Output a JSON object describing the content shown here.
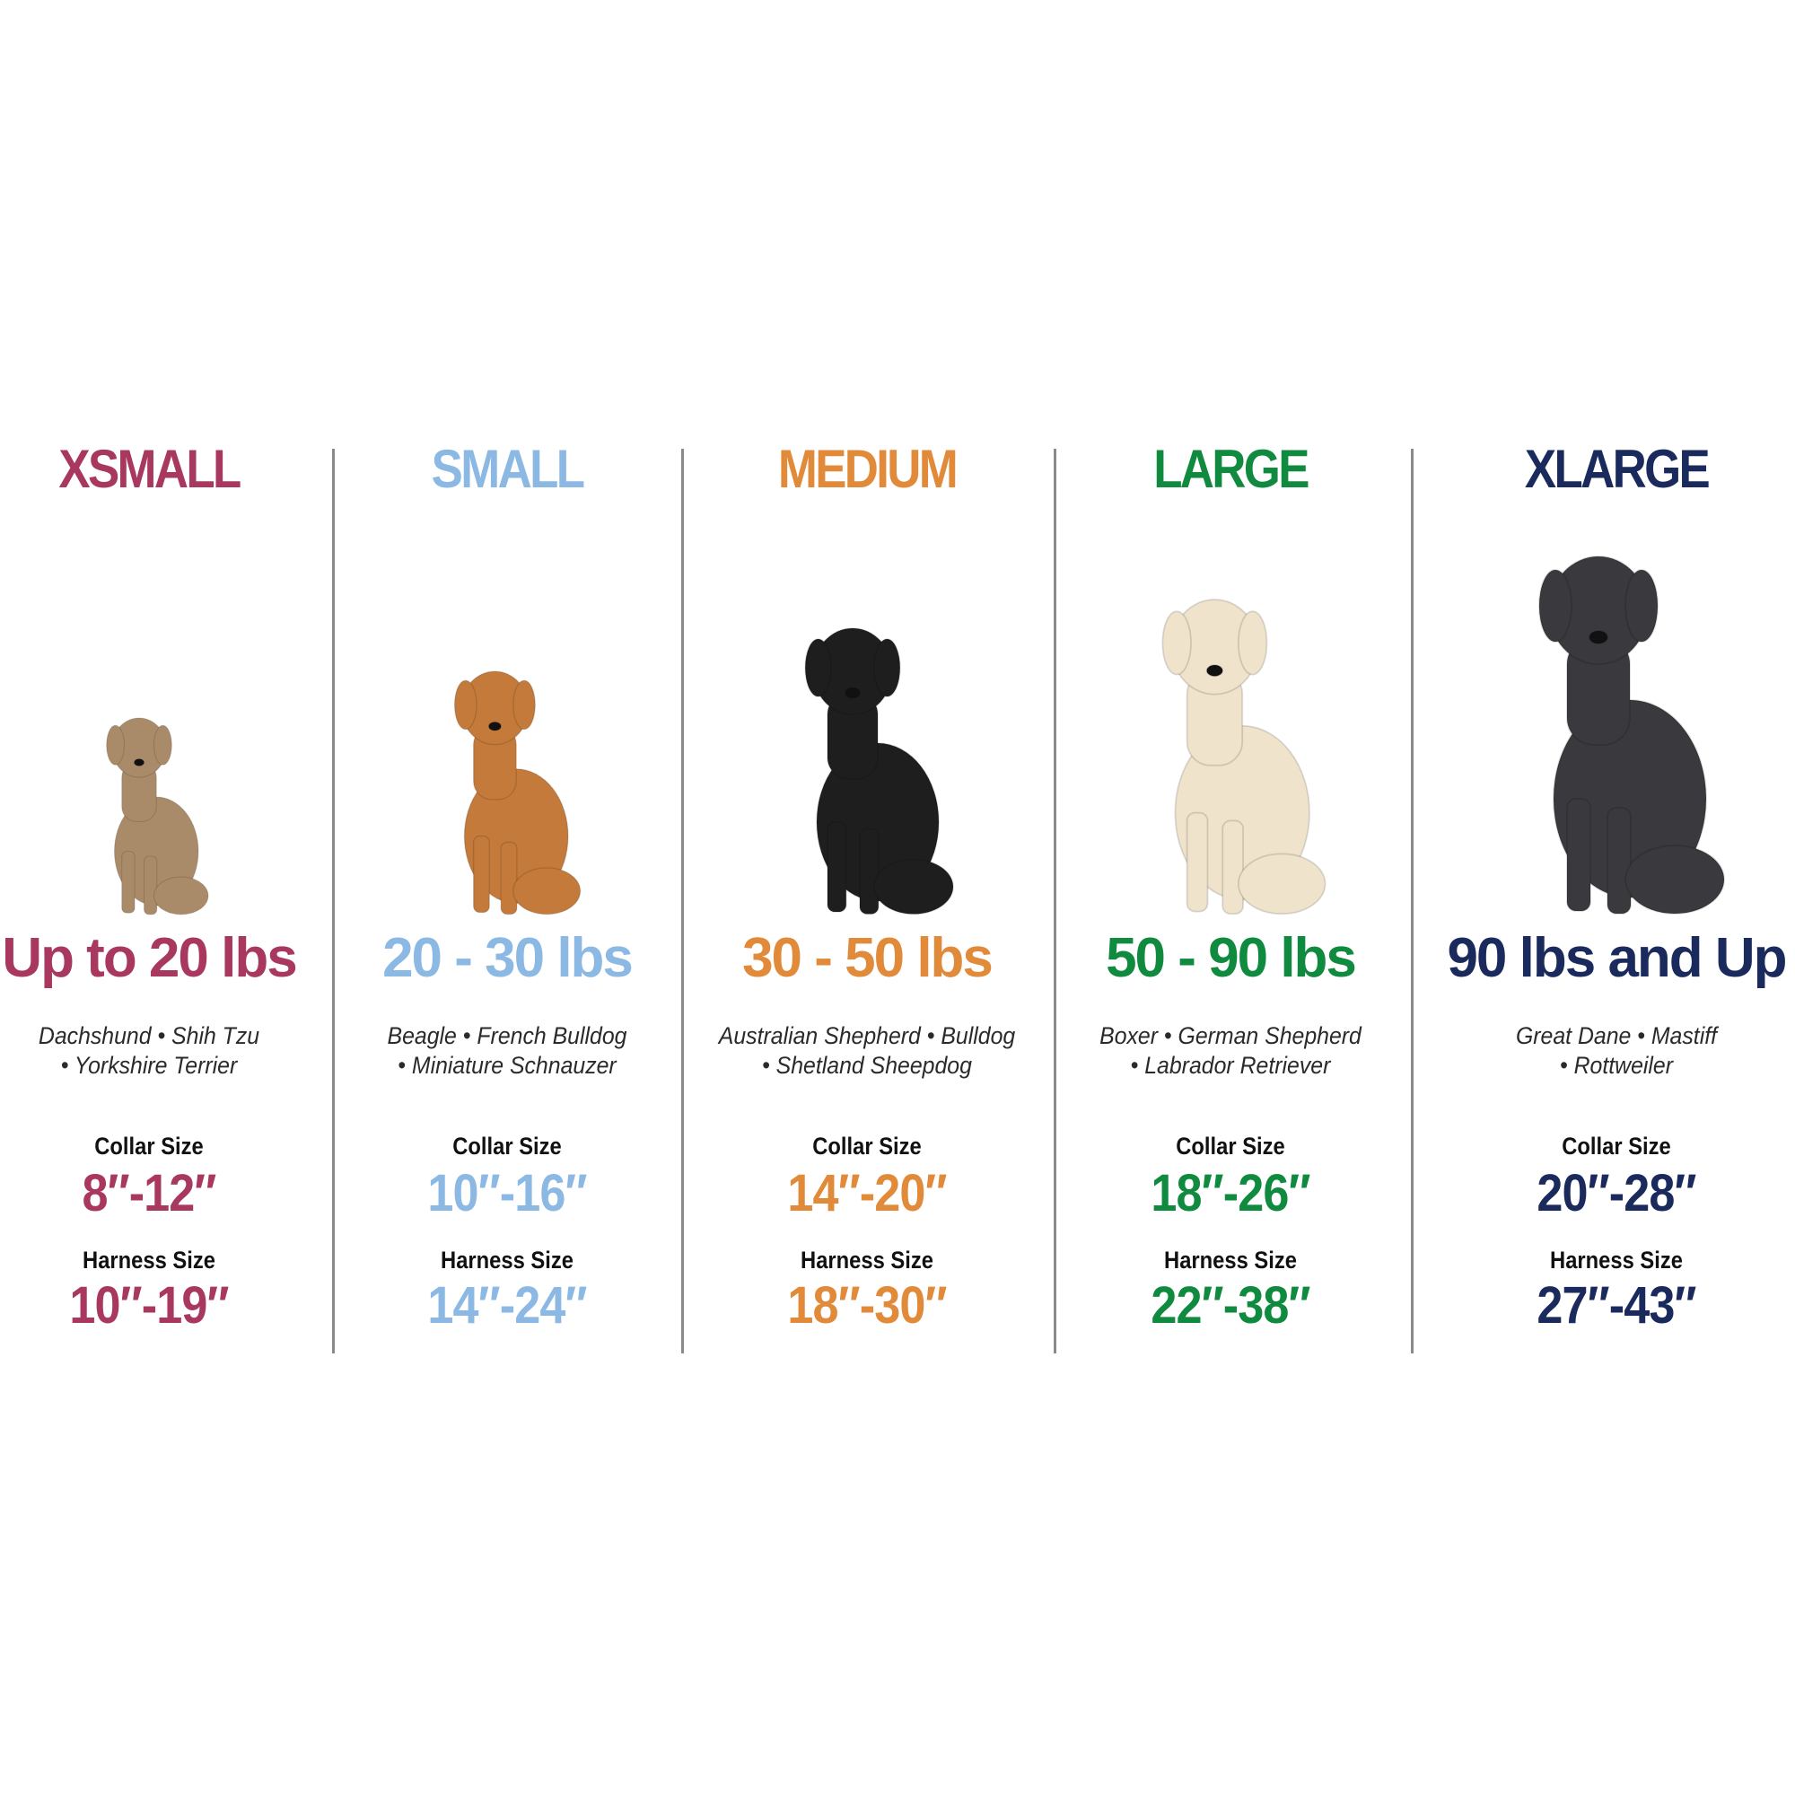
{
  "columns": [
    {
      "size": "XSMALL",
      "weight": "Up to 20 lbs",
      "breeds_line1": "Dachshund • Shih Tzu",
      "breeds_line2": "• Yorkshire Terrier",
      "collar_label": "Collar Size",
      "collar": "8″-12″",
      "harness_label": "Harness Size",
      "harness": "10″-19″",
      "color": "#a8385f",
      "dog_color": "#a98b6a"
    },
    {
      "size": "SMALL",
      "weight": "20 - 30 lbs",
      "breeds_line1": "Beagle • French Bulldog",
      "breeds_line2": "• Miniature Schnauzer",
      "collar_label": "Collar Size",
      "collar": "10″-16″",
      "harness_label": "Harness Size",
      "harness": "14″-24″",
      "color": "#8cb8e4",
      "dog_color": "#c47a3a"
    },
    {
      "size": "MEDIUM",
      "weight": "30 - 50 lbs",
      "breeds_line1": "Australian Shepherd • Bulldog",
      "breeds_line2": "• Shetland Sheepdog",
      "collar_label": "Collar Size",
      "collar": "14″-20″",
      "harness_label": "Harness Size",
      "harness": "18″-30″",
      "color": "#e08a3a",
      "dog_color": "#1e1e1e"
    },
    {
      "size": "LARGE",
      "weight": "50 - 90 lbs",
      "breeds_line1": "Boxer • German Shepherd",
      "breeds_line2": "• Labrador Retriever",
      "collar_label": "Collar Size",
      "collar": "18″-26″",
      "harness_label": "Harness Size",
      "harness": "22″-38″",
      "color": "#0f8a3e",
      "dog_color": "#efe3cc"
    },
    {
      "size": "XLARGE",
      "weight": "90 lbs and Up",
      "breeds_line1": "Great Dane • Mastiff",
      "breeds_line2": "• Rottweiler",
      "collar_label": "Collar Size",
      "collar": "20″-28″",
      "harness_label": "Harness Size",
      "harness": "27″-43″",
      "color": "#1a2a5c",
      "dog_color": "#3a3a3e"
    }
  ]
}
